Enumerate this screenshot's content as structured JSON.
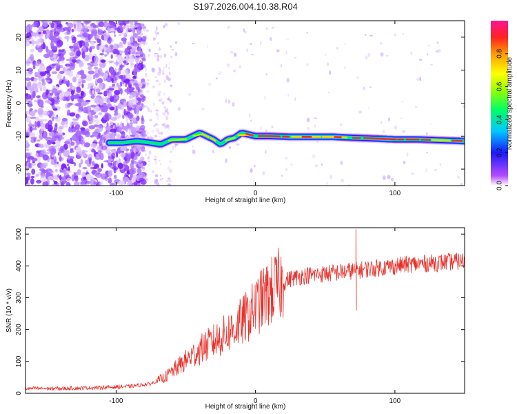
{
  "chart_data": [
    {
      "type": "heatmap",
      "title": "S197.2026.004.10.38.R04",
      "xlabel": "Height of straight line (km)",
      "ylabel": "Frequency (Hz)",
      "xlim": [
        -165,
        150
      ],
      "ylim": [
        -25,
        25
      ],
      "xticks": [
        -100,
        0,
        100
      ],
      "yticks": [
        -20,
        -10,
        0,
        10,
        20
      ],
      "ridge": {
        "x": [
          -105,
          -95,
          -85,
          -75,
          -68,
          -60,
          -50,
          -40,
          -35,
          -30,
          -25,
          -20,
          -15,
          -10,
          -5,
          0,
          10,
          25,
          40,
          55,
          70,
          85,
          100,
          115,
          130,
          150
        ],
        "freq": [
          -12,
          -12,
          -11.5,
          -12,
          -12.5,
          -11,
          -11,
          -9,
          -10,
          -11,
          -12.5,
          -11,
          -10.5,
          -9,
          -9.5,
          -10,
          -10,
          -10.2,
          -10.2,
          -10.2,
          -10.5,
          -10.7,
          -11,
          -11,
          -11.2,
          -11.5
        ]
      },
      "colorbar": {
        "label": "Normalized spectral amplitude",
        "ticks": [
          0.0,
          0.2,
          0.4,
          0.6,
          0.8
        ],
        "tick_labels": [
          "0.0",
          "0.2",
          "0.4",
          "0.6",
          "0.8"
        ],
        "range": [
          0,
          1
        ]
      }
    },
    {
      "type": "line",
      "xlabel": "Height of straight line (km)",
      "ylabel": "SNR (10 * v/v)",
      "xlim": [
        -165,
        150
      ],
      "ylim": [
        0,
        520
      ],
      "xticks": [
        -100,
        0,
        100
      ],
      "yticks": [
        0,
        100,
        200,
        300,
        400,
        500
      ],
      "color": "#e8302a",
      "trend": {
        "x": [
          -165,
          -140,
          -110,
          -90,
          -75,
          -65,
          -55,
          -45,
          -35,
          -25,
          -15,
          -5,
          5,
          15,
          25,
          35,
          50,
          70,
          90,
          110,
          130,
          150
        ],
        "snr": [
          15,
          15,
          18,
          22,
          30,
          50,
          85,
          120,
          150,
          175,
          205,
          245,
          295,
          335,
          360,
          370,
          375,
          385,
          395,
          405,
          410,
          415
        ]
      },
      "spikes": [
        {
          "x": 72,
          "snr": 515
        },
        {
          "x": 73,
          "snr": 260
        }
      ]
    }
  ]
}
